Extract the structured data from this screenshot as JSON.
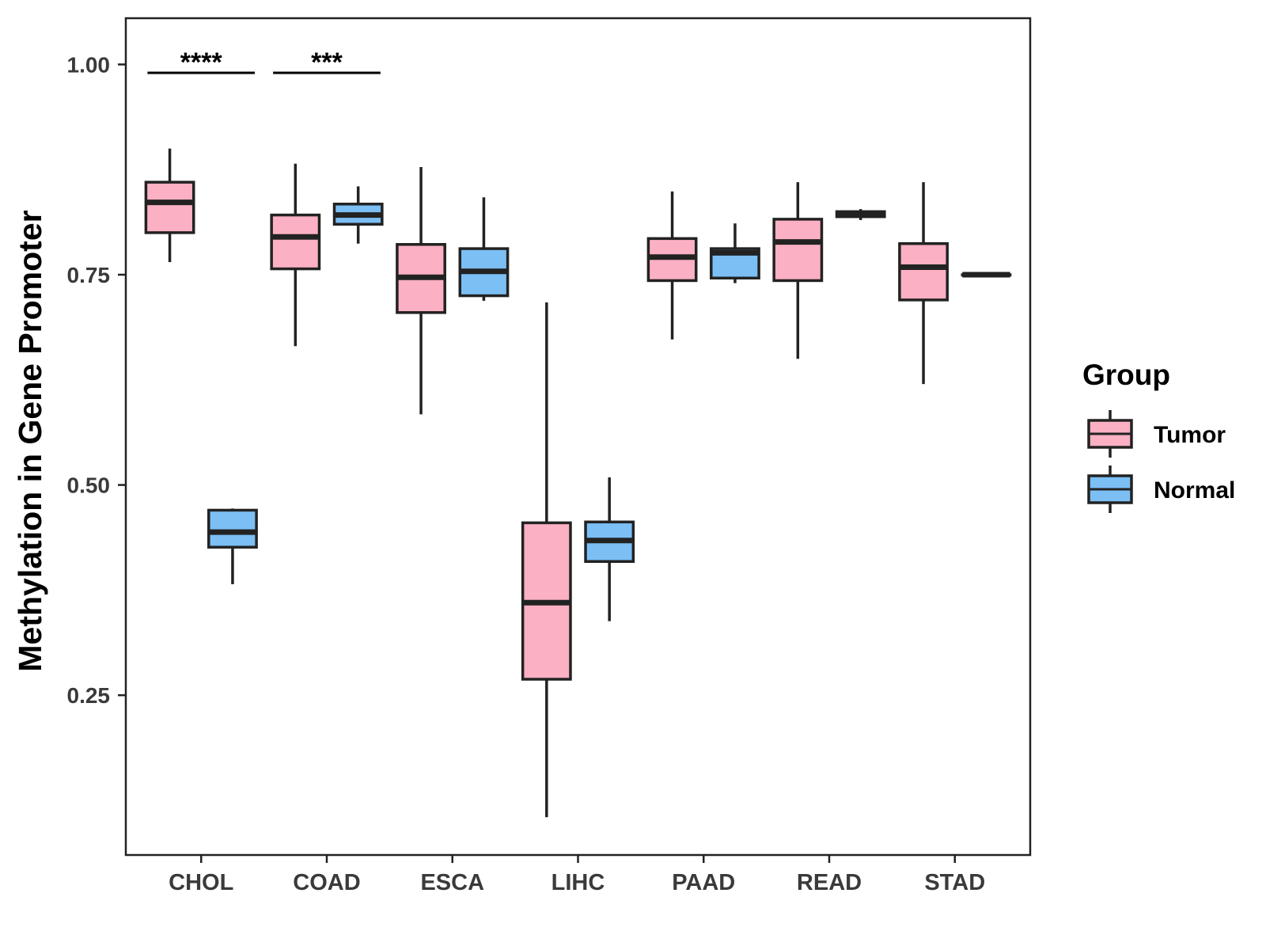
{
  "chart_data": {
    "type": "boxplot",
    "title": "",
    "xlabel": "",
    "ylabel": "Methylation in Gene Promoter",
    "ylim": [
      0.06,
      1.055
    ],
    "yticks": [
      0.25,
      0.5,
      0.75,
      1.0
    ],
    "ytick_labels": [
      "0.25",
      "0.50",
      "0.75",
      "1.00"
    ],
    "categories": [
      "CHOL",
      "COAD",
      "ESCA",
      "LIHC",
      "PAAD",
      "READ",
      "STAD"
    ],
    "grid": false,
    "legend": {
      "title": "Group",
      "placement": "right",
      "entries": [
        {
          "name": "Tumor",
          "color": "#fbb0c3"
        },
        {
          "name": "Normal",
          "color": "#7bbff5"
        }
      ]
    },
    "series": [
      {
        "name": "Tumor",
        "color": "#fbb0c3",
        "boxes": [
          {
            "min": 0.765,
            "q1": 0.8,
            "median": 0.836,
            "q3": 0.86,
            "max": 0.9
          },
          {
            "min": 0.665,
            "q1": 0.757,
            "median": 0.795,
            "q3": 0.821,
            "max": 0.882
          },
          {
            "min": 0.584,
            "q1": 0.705,
            "median": 0.747,
            "q3": 0.786,
            "max": 0.878
          },
          {
            "min": 0.105,
            "q1": 0.269,
            "median": 0.36,
            "q3": 0.455,
            "max": 0.717
          },
          {
            "min": 0.673,
            "q1": 0.743,
            "median": 0.771,
            "q3": 0.793,
            "max": 0.849
          },
          {
            "min": 0.65,
            "q1": 0.743,
            "median": 0.789,
            "q3": 0.816,
            "max": 0.86
          },
          {
            "min": 0.62,
            "q1": 0.72,
            "median": 0.759,
            "q3": 0.787,
            "max": 0.86
          }
        ]
      },
      {
        "name": "Normal",
        "color": "#7bbff5",
        "boxes": [
          {
            "min": 0.382,
            "q1": 0.426,
            "median": 0.444,
            "q3": 0.47,
            "max": 0.472
          },
          {
            "min": 0.787,
            "q1": 0.81,
            "median": 0.821,
            "q3": 0.834,
            "max": 0.855
          },
          {
            "min": 0.719,
            "q1": 0.725,
            "median": 0.754,
            "q3": 0.781,
            "max": 0.842
          },
          {
            "min": 0.338,
            "q1": 0.409,
            "median": 0.434,
            "q3": 0.456,
            "max": 0.509
          },
          {
            "min": 0.74,
            "q1": 0.746,
            "median": 0.776,
            "q3": 0.781,
            "max": 0.811
          },
          {
            "min": 0.815,
            "q1": 0.819,
            "median": 0.822,
            "q3": 0.825,
            "max": 0.828
          },
          {
            "min": 0.75,
            "q1": 0.75,
            "median": 0.75,
            "q3": 0.75,
            "max": 0.751
          }
        ]
      }
    ],
    "annotations": [
      {
        "category": "CHOL",
        "text": "****",
        "y": 0.99
      },
      {
        "category": "COAD",
        "text": "***",
        "y": 0.99
      }
    ]
  }
}
